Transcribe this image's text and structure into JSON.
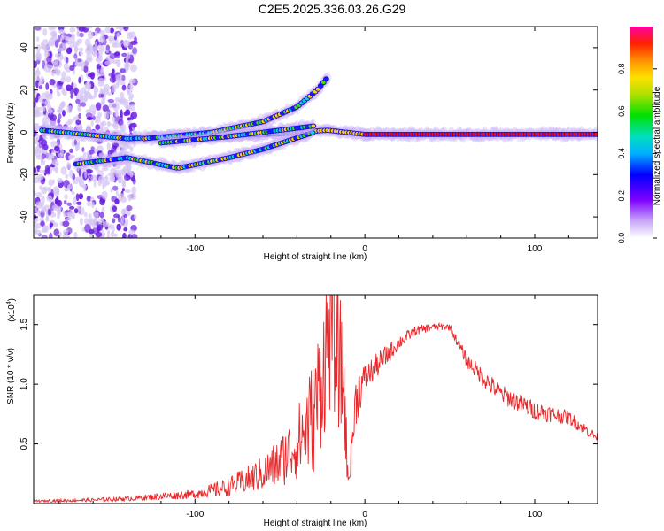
{
  "title": "C2E5.2025.336.03.26.G29",
  "colors": {
    "snr_line": "#e8282a",
    "axis": "#000000"
  },
  "chart_data": [
    {
      "type": "heatmap",
      "title": "C2E5.2025.336.03.26.G29",
      "xlabel": "Height of straight line (km)",
      "ylabel": "Frequency (Hz)",
      "xlim": [
        -195,
        137
      ],
      "ylim": [
        -50,
        50
      ],
      "xticks": [
        -100,
        0,
        100
      ],
      "xtick_labels": [
        "-100",
        "0",
        "100"
      ],
      "yticks": [
        -40,
        -20,
        0,
        20,
        40
      ],
      "ytick_labels": [
        "-40",
        "-20",
        "0",
        "20",
        "40"
      ],
      "colorbar": {
        "label": "Normalized spectral amplitude",
        "range": [
          0,
          1
        ],
        "ticks": [
          0.0,
          0.2,
          0.4,
          0.6,
          0.8
        ],
        "tick_labels": [
          "0.0",
          "0.2",
          "0.4",
          "0.6",
          "0.8"
        ]
      },
      "ridges": [
        {
          "name": "main",
          "points": [
            [
              -190,
              1
            ],
            [
              -140,
              -3
            ],
            [
              -100,
              -2
            ],
            [
              -60,
              -1
            ],
            [
              -40,
              0
            ],
            [
              -22,
              1
            ],
            [
              0,
              -1
            ],
            [
              50,
              -1
            ],
            [
              100,
              -1
            ],
            [
              137,
              -1
            ]
          ]
        },
        {
          "name": "upper-branch",
          "points": [
            [
              -130,
              -3
            ],
            [
              -90,
              0
            ],
            [
              -60,
              5
            ],
            [
              -40,
              12
            ],
            [
              -28,
              20
            ],
            [
              -22,
              26
            ]
          ]
        },
        {
          "name": "lower-branch",
          "points": [
            [
              -170,
              -15
            ],
            [
              -140,
              -12
            ],
            [
              -110,
              -17
            ],
            [
              -80,
              -12
            ],
            [
              -60,
              -8
            ],
            [
              -45,
              -4
            ],
            [
              -30,
              0
            ]
          ]
        },
        {
          "name": "middle-branch",
          "points": [
            [
              -120,
              -5
            ],
            [
              -80,
              -2
            ],
            [
              -50,
              1
            ],
            [
              -30,
              3
            ]
          ]
        }
      ]
    },
    {
      "type": "line",
      "xlabel": "Height of straight line (km)",
      "ylabel": "SNR (10 * v/v)",
      "y_multiplier_label": "(x10",
      "y_multiplier_exp": "4",
      "y_multiplier_close": ")",
      "xlim": [
        -195,
        137
      ],
      "ylim": [
        0,
        1.75
      ],
      "xticks": [
        -100,
        0,
        100
      ],
      "xtick_labels": [
        "-100",
        "0",
        "100"
      ],
      "yticks": [
        0.5,
        1.0,
        1.5
      ],
      "ytick_labels": [
        "0.5",
        "1.0",
        "1.5"
      ],
      "series": [
        {
          "name": "SNR",
          "x": [
            -195,
            -160,
            -140,
            -120,
            -100,
            -80,
            -60,
            -50,
            -40,
            -30,
            -25,
            -20,
            -15,
            -12,
            -10,
            -5,
            0,
            10,
            20,
            30,
            40,
            50,
            60,
            70,
            80,
            100,
            120,
            137
          ],
          "y": [
            0.02,
            0.03,
            0.04,
            0.06,
            0.08,
            0.14,
            0.25,
            0.35,
            0.5,
            0.75,
            1.1,
            1.5,
            1.2,
            0.9,
            0.15,
            0.9,
            1.05,
            1.2,
            1.35,
            1.45,
            1.48,
            1.48,
            1.2,
            1.05,
            0.92,
            0.78,
            0.72,
            0.55
          ],
          "noise": [
            0.01,
            0.015,
            0.02,
            0.03,
            0.04,
            0.08,
            0.15,
            0.22,
            0.3,
            0.5,
            0.6,
            0.7,
            0.6,
            0.5,
            0.1,
            0.25,
            0.12,
            0.1,
            0.06,
            0.04,
            0.03,
            0.03,
            0.06,
            0.08,
            0.08,
            0.08,
            0.06,
            0.04
          ]
        }
      ]
    }
  ]
}
